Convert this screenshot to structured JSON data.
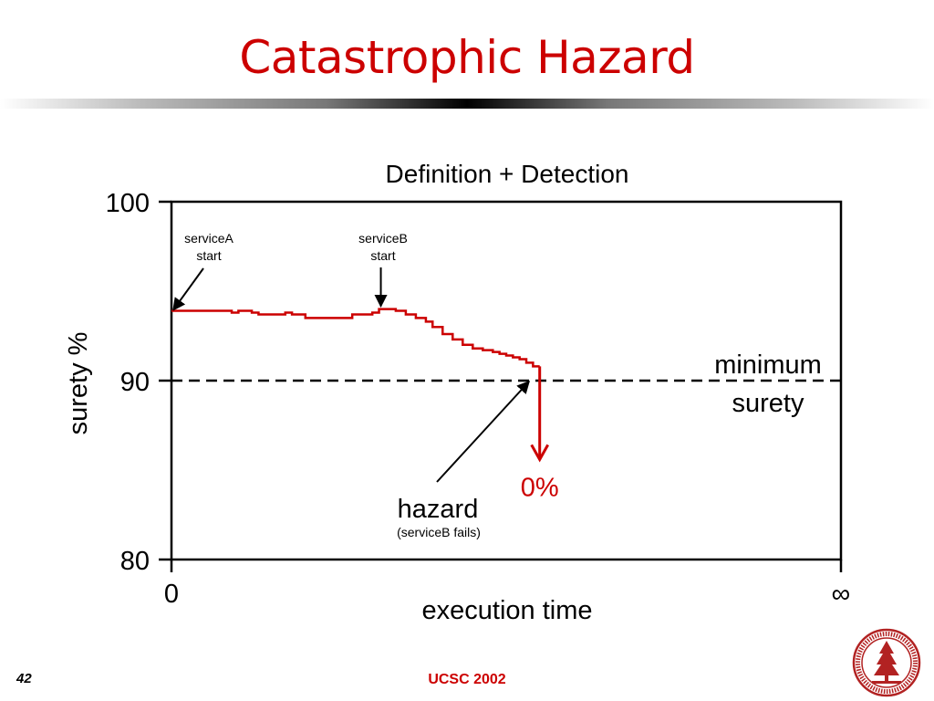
{
  "slide": {
    "title": "Catastrophic Hazard",
    "page_number": "42",
    "footer": "UCSC 2002"
  },
  "colors": {
    "title": "#cc0000",
    "line": "#cc0000",
    "axis": "#000000"
  },
  "chart_data": {
    "type": "line",
    "title": "Definition + Detection",
    "xlabel": "execution time",
    "ylabel": "surety %",
    "ylim": [
      80,
      100
    ],
    "xlim": [
      0,
      1
    ],
    "y_ticks": [
      "100",
      "90",
      "80"
    ],
    "x_tick_labels": [
      "0",
      "∞"
    ],
    "grid": false,
    "series": [
      {
        "x": [
          0.0,
          0.09,
          0.1,
          0.12,
          0.13,
          0.15,
          0.17,
          0.18,
          0.2,
          0.23,
          0.26,
          0.27,
          0.29,
          0.3,
          0.31,
          0.32,
          0.335,
          0.35,
          0.365,
          0.38,
          0.39,
          0.405,
          0.42,
          0.435,
          0.45,
          0.465,
          0.48,
          0.49,
          0.5,
          0.51,
          0.52,
          0.53,
          0.54,
          0.55
        ],
        "y": [
          93.9,
          93.8,
          93.9,
          93.8,
          93.7,
          93.7,
          93.8,
          93.7,
          93.5,
          93.5,
          93.5,
          93.7,
          93.7,
          93.8,
          94.0,
          94.0,
          93.9,
          93.7,
          93.5,
          93.3,
          93.0,
          92.6,
          92.3,
          92.0,
          91.8,
          91.7,
          91.6,
          91.5,
          91.4,
          91.3,
          91.2,
          91.0,
          90.8,
          90.8
        ]
      }
    ],
    "threshold": {
      "y": 90,
      "label_line1": "minimum",
      "label_line2": "surety"
    },
    "failure": {
      "x": 0.55,
      "to_y": 86,
      "label": "0%"
    },
    "annotations": {
      "service_a": {
        "line1": "serviceA",
        "line2": "start",
        "x": 0.0,
        "y": 93.9
      },
      "service_b": {
        "line1": "serviceB",
        "line2": "start",
        "x": 0.31,
        "y": 94.0
      },
      "hazard": {
        "label": "hazard",
        "sublabel": "(serviceB fails)",
        "x": 0.53,
        "y": 90.0
      }
    }
  }
}
